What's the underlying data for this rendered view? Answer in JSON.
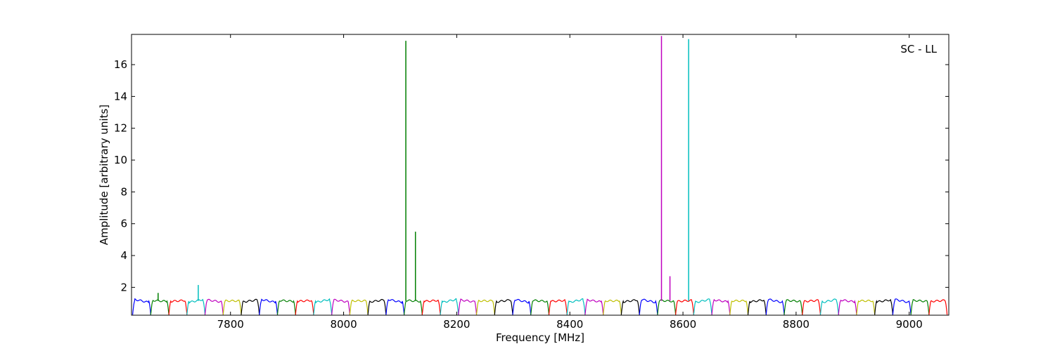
{
  "chart_data": {
    "type": "line",
    "title": "",
    "annotation": "SC - LL",
    "xlabel": "Frequency [MHz]",
    "ylabel": "Amplitude [arbitrary units]",
    "xlim": [
      7625,
      9070
    ],
    "ylim": [
      0.25,
      17.9
    ],
    "xticks": [
      7800,
      8000,
      8200,
      8400,
      8600,
      8800,
      9000
    ],
    "yticks": [
      2,
      4,
      6,
      8,
      10,
      12,
      14,
      16
    ],
    "grid": false,
    "legend": "none",
    "colors": [
      "#0000ff",
      "#007f00",
      "#ff0000",
      "#00bfbf",
      "#bf00bf",
      "#bfbf00",
      "#000000"
    ],
    "channel_width_mhz": 32,
    "channel_start_mhz": 7627,
    "channel_count": 45,
    "channel_passband_amplitude": 1.15,
    "channel_edge_amplitude": 0.28,
    "spikes": [
      {
        "x": 7672,
        "y": 1.65,
        "color": "#007f00"
      },
      {
        "x": 7743,
        "y": 2.15,
        "color": "#00bfbf"
      },
      {
        "x": 8110,
        "y": 17.5,
        "color": "#007f00"
      },
      {
        "x": 8127,
        "y": 5.5,
        "color": "#007f00"
      },
      {
        "x": 8562,
        "y": 17.8,
        "color": "#bf00bf"
      },
      {
        "x": 8577,
        "y": 2.7,
        "color": "#bf00bf"
      },
      {
        "x": 8610,
        "y": 17.6,
        "color": "#00bfbf"
      }
    ]
  }
}
